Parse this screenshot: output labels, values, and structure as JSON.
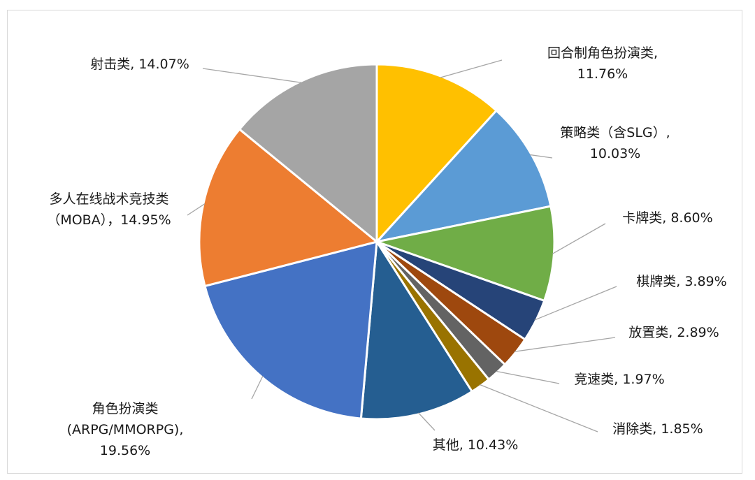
{
  "chart_data": {
    "type": "pie",
    "title": "",
    "slices": [
      {
        "name": "回合制角色扮演类",
        "value": 11.76,
        "label_lines": [
          "回合制角色扮演类,",
          "11.76%"
        ],
        "color": "#FFC000"
      },
      {
        "name": "策略类（含SLG）",
        "value": 10.03,
        "label_lines": [
          "策略类（含SLG）,",
          "10.03%"
        ],
        "color": "#5B9BD5"
      },
      {
        "name": "卡牌类",
        "value": 8.6,
        "label_lines": [
          "卡牌类, 8.60%"
        ],
        "color": "#70AD47"
      },
      {
        "name": "棋牌类",
        "value": 3.89,
        "label_lines": [
          "棋牌类, 3.89%"
        ],
        "color": "#264478"
      },
      {
        "name": "放置类",
        "value": 2.89,
        "label_lines": [
          "放置类, 2.89%"
        ],
        "color": "#9E480E"
      },
      {
        "name": "竞速类",
        "value": 1.97,
        "label_lines": [
          "竞速类, 1.97%"
        ],
        "color": "#636363"
      },
      {
        "name": "消除类",
        "value": 1.85,
        "label_lines": [
          "消除类, 1.85%"
        ],
        "color": "#997300"
      },
      {
        "name": "其他",
        "value": 10.43,
        "label_lines": [
          "其他, 10.43%"
        ],
        "color": "#255E91"
      },
      {
        "name": "角色扮演类(ARPG/MMORPG)",
        "value": 19.56,
        "label_lines": [
          "角色扮演类",
          "(ARPG/MMORPG),",
          "19.56%"
        ],
        "color": "#4472C4"
      },
      {
        "name": "多人在线战术竞技类（MOBA）",
        "value": 14.95,
        "label_lines": [
          "多人在线战术竞技类",
          "（MOBA），14.95%"
        ],
        "color": "#ED7D31"
      },
      {
        "name": "射击类",
        "value": 14.07,
        "label_lines": [
          "射击类, 14.07%"
        ],
        "color": "#A5A5A5"
      }
    ],
    "start_angle_deg": 0,
    "direction": "clockwise",
    "legend": "none",
    "data_labels": "outside-with-leader-lines"
  }
}
